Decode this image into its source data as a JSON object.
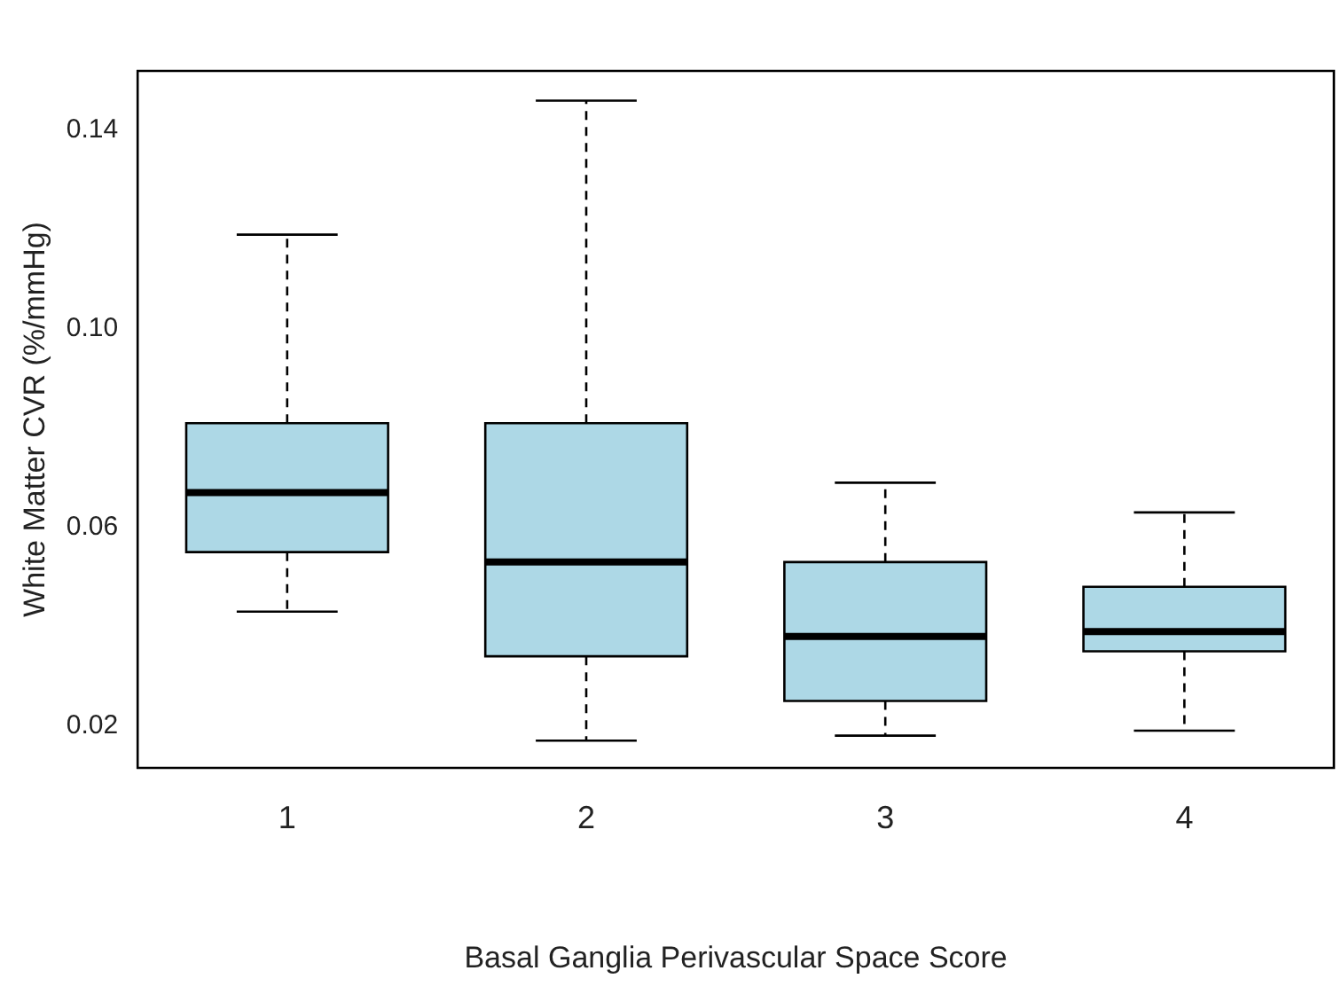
{
  "chart_data": {
    "type": "box",
    "xlabel": "Basal Ganglia Perivascular Space Score",
    "ylabel": "White Matter CVR (%/mmHg)",
    "categories": [
      "1",
      "2",
      "3",
      "4"
    ],
    "color": "#add8e6",
    "ylim": [
      0.0115,
      0.152
    ],
    "yticks": [
      {
        "value": 0.02,
        "label": "0.02"
      },
      {
        "value": 0.06,
        "label": "0.06"
      },
      {
        "value": 0.1,
        "label": "0.10"
      },
      {
        "value": 0.14,
        "label": "0.14"
      }
    ],
    "grid": false,
    "legend": false,
    "boxes": [
      {
        "low": 0.043,
        "q1": 0.055,
        "median": 0.067,
        "q3": 0.081,
        "high": 0.119
      },
      {
        "low": 0.017,
        "q1": 0.034,
        "median": 0.053,
        "q3": 0.081,
        "high": 0.146
      },
      {
        "low": 0.018,
        "q1": 0.025,
        "median": 0.038,
        "q3": 0.053,
        "high": 0.069
      },
      {
        "low": 0.019,
        "q1": 0.035,
        "median": 0.039,
        "q3": 0.048,
        "high": 0.063
      }
    ]
  }
}
